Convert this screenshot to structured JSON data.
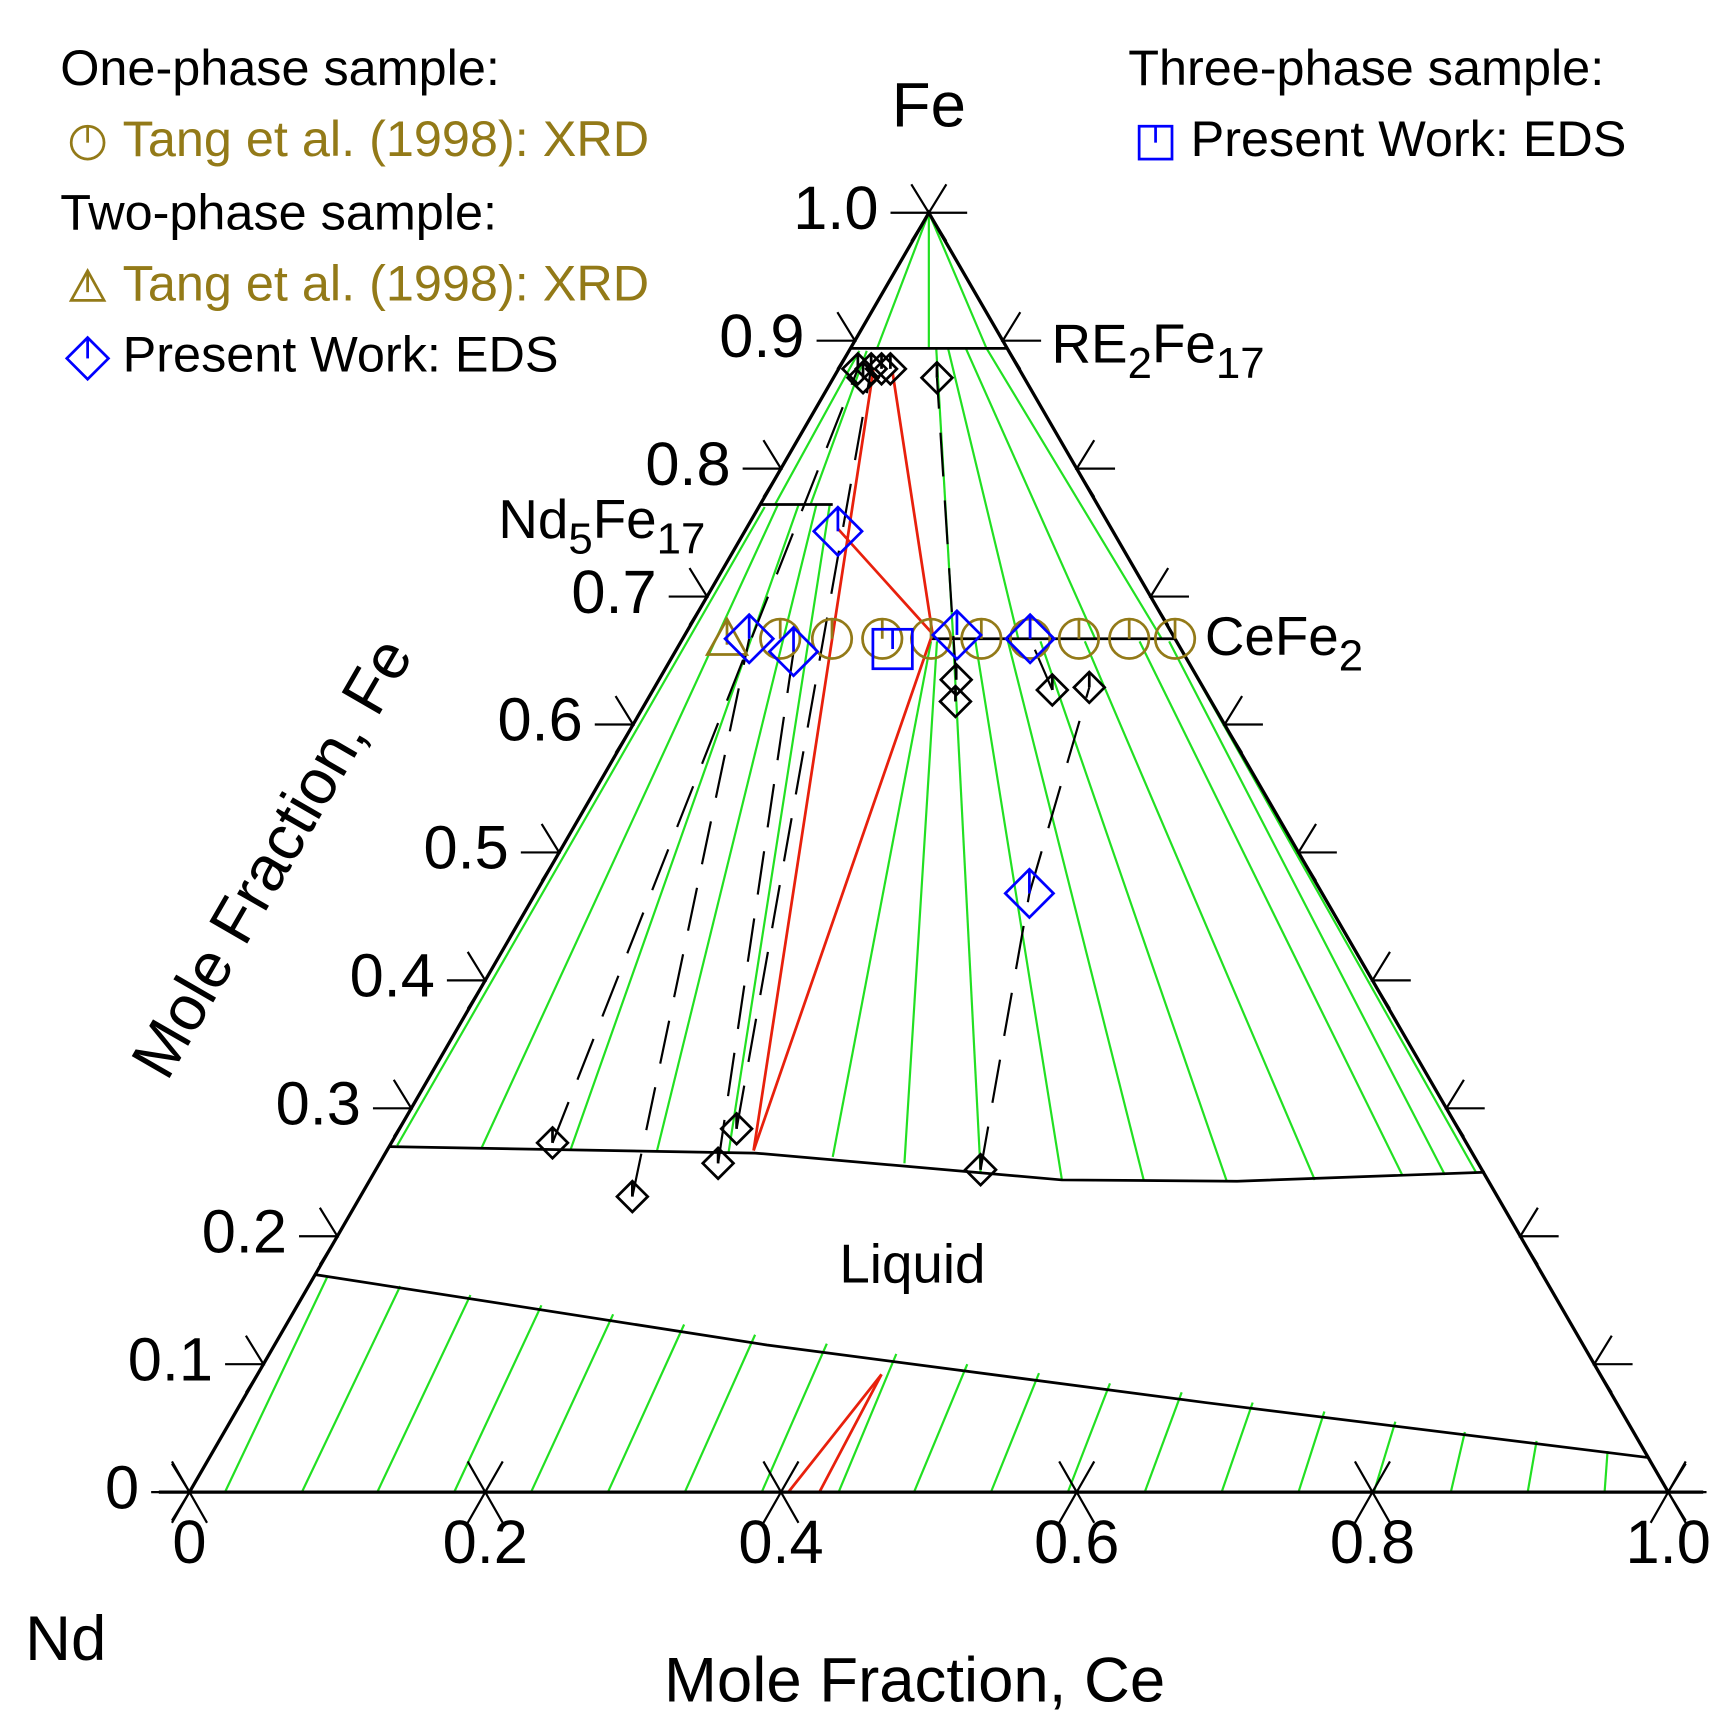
{
  "chart_data": {
    "type": "ternary",
    "corner_labels": {
      "left": "Nd",
      "top": "Fe"
    },
    "xlabel": "Mole Fraction, Ce",
    "ylabel": "Mole Fraction, Fe",
    "fe_ticks": [
      0,
      0.1,
      0.2,
      0.3,
      0.4,
      0.5,
      0.6,
      0.7,
      0.8,
      0.9,
      {
        "value": 1,
        "label": "1.0"
      }
    ],
    "ce_ticks": [
      0,
      0.2,
      0.4,
      0.6,
      0.8,
      {
        "value": 1,
        "label": "1.0"
      }
    ],
    "groups": [
      {
        "title": "One-phase sample:",
        "series": [
          {
            "name": "Tang et al. (1998): XRD",
            "marker": "circle",
            "color": "#937a18",
            "label_color": "#937a18",
            "x": [
              0.066,
              0.101,
              0.135,
              0.168,
              0.202,
              0.235,
              0.268,
              0.302,
              0.333
            ],
            "values": [
              0.667,
              0.667,
              0.667,
              0.667,
              0.667,
              0.667,
              0.667,
              0.667,
              0.667
            ]
          }
        ]
      },
      {
        "title": "Two-phase sample:",
        "series": [
          {
            "name": "Tang et al. (1998): XRD",
            "marker": "triangle",
            "color": "#937a18",
            "label_color": "#937a18",
            "x": [
              0.03
            ],
            "values": [
              0.667
            ]
          },
          {
            "name": "Present Work: EDS",
            "marker": "diamond",
            "color": "#0000ff",
            "label_color": "#000000",
            "x": [
              0.045,
              0.08,
              0.063,
              0.184,
              0.235,
              0.334
            ],
            "values": [
              0.667,
              0.657,
              0.751,
              0.67,
              0.667,
              0.468
            ]
          }
        ]
      },
      {
        "title": "Three-phase sample:",
        "series": [
          {
            "name": "Present Work: EDS",
            "marker": "square",
            "color": "#0000ff",
            "label_color": "#000000",
            "x": [
              0.146
            ],
            "values": [
              0.659
            ]
          }
        ]
      }
    ],
    "tie_points": {
      "color": "#000000",
      "x": [
        0.013,
        0.022,
        0.029,
        0.035,
        0.02,
        0.07,
        0.109,
        0.184,
        0.229,
        0.228,
        0.409,
        0.201,
        0.209,
        0.27,
        0.294
      ],
      "values": [
        0.878,
        0.878,
        0.878,
        0.878,
        0.871,
        0.871,
        0.273,
        0.231,
        0.257,
        0.284,
        0.252,
        0.635,
        0.618,
        0.627,
        0.629
      ]
    },
    "experimental_ties": [
      [
        [
          0.109,
          0.273
        ],
        [
          0.013,
          0.878
        ]
      ],
      [
        [
          0.184,
          0.231
        ],
        [
          0.045,
          0.667
        ]
      ],
      [
        [
          0.229,
          0.257
        ],
        [
          0.08,
          0.657
        ]
      ],
      [
        [
          0.228,
          0.284
        ],
        [
          0.022,
          0.878
        ]
      ],
      [
        [
          0.201,
          0.635
        ],
        [
          0.07,
          0.871
        ]
      ],
      [
        [
          0.27,
          0.627
        ],
        [
          0.235,
          0.667
        ]
      ],
      [
        [
          0.409,
          0.252
        ],
        [
          0.334,
          0.468
        ]
      ],
      [
        [
          0.334,
          0.468
        ],
        [
          0.294,
          0.629
        ]
      ]
    ],
    "boundaries": [
      [
        [
          0,
          0.27
        ],
        [
          0.25,
          0.265
        ],
        [
          0.468,
          0.244
        ],
        [
          0.587,
          0.243
        ],
        [
          0.751,
          0.25
        ]
      ],
      [
        [
          0,
          0.17
        ],
        [
          0.333,
          0.115
        ],
        [
          0.652,
          0.07
        ],
        [
          0.973,
          0.027
        ]
      ],
      [
        [
          0,
          0.894
        ],
        [
          0.106,
          0.894
        ]
      ],
      [
        [
          0,
          0.772
        ],
        [
          0.049,
          0.772
        ]
      ],
      [
        [
          0.168,
          0.667
        ],
        [
          0.333,
          0.667
        ]
      ]
    ],
    "tie_lines": [
      [
        [
          0.005,
          0.271
        ],
        [
          0.004,
          0.77
        ]
      ],
      [
        [
          0.063,
          0.269
        ],
        [
          0.012,
          0.772
        ]
      ],
      [
        [
          0.124,
          0.267
        ],
        [
          0.026,
          0.772
        ]
      ],
      [
        [
          0.183,
          0.266
        ],
        [
          0.038,
          0.772
        ]
      ],
      [
        [
          0.232,
          0.265
        ],
        [
          0.047,
          0.772
        ]
      ],
      [
        [
          0.01,
          0.772
        ],
        [
          0.007,
          0.892
        ]
      ],
      [
        [
          0.034,
          0.772
        ],
        [
          0.012,
          0.892
        ]
      ],
      [
        [
          0.304,
          0.262
        ],
        [
          0.169,
          0.665
        ]
      ],
      [
        [
          0.355,
          0.257
        ],
        [
          0.173,
          0.665
        ]
      ],
      [
        [
          0.41,
          0.25
        ],
        [
          0.184,
          0.665
        ]
      ],
      [
        [
          0.468,
          0.244
        ],
        [
          0.199,
          0.665
        ]
      ],
      [
        [
          0.524,
          0.243
        ],
        [
          0.221,
          0.665
        ]
      ],
      [
        [
          0.58,
          0.243
        ],
        [
          0.243,
          0.665
        ]
      ],
      [
        [
          0.639,
          0.244
        ],
        [
          0.273,
          0.665
        ]
      ],
      [
        [
          0.697,
          0.247
        ],
        [
          0.31,
          0.665
        ]
      ],
      [
        [
          0.725,
          0.248
        ],
        [
          0.33,
          0.665
        ]
      ],
      [
        [
          0.745,
          0.25
        ],
        [
          0.333,
          0.667
        ]
      ],
      [
        [
          0.183,
          0.667
        ],
        [
          0.058,
          0.894
        ]
      ],
      [
        [
          0.227,
          0.667
        ],
        [
          0.066,
          0.894
        ]
      ],
      [
        [
          0.279,
          0.667
        ],
        [
          0.078,
          0.894
        ]
      ],
      [
        [
          0.324,
          0.667
        ],
        [
          0.092,
          0.894
        ]
      ],
      [
        [
          0,
          1
        ],
        [
          0.018,
          0.894
        ]
      ],
      [
        [
          0,
          1
        ],
        [
          0.053,
          0.894
        ]
      ],
      [
        [
          0,
          1
        ],
        [
          0.092,
          0.894
        ]
      ],
      [
        [
          0.009,
          0.169
        ],
        [
          0.024,
          0
        ]
      ],
      [
        [
          0.062,
          0.161
        ],
        [
          0.076,
          0
        ]
      ],
      [
        [
          0.113,
          0.154
        ],
        [
          0.127,
          0
        ]
      ],
      [
        [
          0.165,
          0.146
        ],
        [
          0.179,
          0
        ]
      ],
      [
        [
          0.217,
          0.139
        ],
        [
          0.231,
          0
        ]
      ],
      [
        [
          0.269,
          0.131
        ],
        [
          0.283,
          0
        ]
      ],
      [
        [
          0.321,
          0.123
        ],
        [
          0.335,
          0
        ]
      ],
      [
        [
          0.373,
          0.116
        ],
        [
          0.387,
          0
        ]
      ],
      [
        [
          0.424,
          0.108
        ],
        [
          0.439,
          0
        ]
      ],
      [
        [
          0.476,
          0.1
        ],
        [
          0.49,
          0
        ]
      ],
      [
        [
          0.528,
          0.093
        ],
        [
          0.542,
          0
        ]
      ],
      [
        [
          0.58,
          0.085
        ],
        [
          0.594,
          0
        ]
      ],
      [
        [
          0.632,
          0.078
        ],
        [
          0.646,
          0
        ]
      ],
      [
        [
          0.684,
          0.07
        ],
        [
          0.698,
          0
        ]
      ],
      [
        [
          0.736,
          0.063
        ],
        [
          0.75,
          0
        ]
      ],
      [
        [
          0.788,
          0.055
        ],
        [
          0.801,
          0
        ]
      ],
      [
        [
          0.839,
          0.047
        ],
        [
          0.853,
          0
        ]
      ],
      [
        [
          0.891,
          0.04
        ],
        [
          0.905,
          0
        ]
      ],
      [
        [
          0.943,
          0.032
        ],
        [
          0.957,
          0
        ]
      ]
    ],
    "tie_color": "#22e022",
    "three_phase_lines": [
      [
        [
          0.024,
          0.877
        ],
        [
          0.248,
          0.267
        ]
      ],
      [
        [
          0.038,
          0.875
        ],
        [
          0.167,
          0.671
        ]
      ],
      [
        [
          0.167,
          0.671
        ],
        [
          0.248,
          0.267
        ]
      ],
      [
        [
          0.062,
          0.753
        ],
        [
          0.167,
          0.671
        ]
      ],
      [
        [
          0.422,
          0.092
        ],
        [
          0.405,
          0
        ]
      ],
      [
        [
          0.422,
          0.092
        ],
        [
          0.426,
          0
        ]
      ]
    ],
    "three_phase_color": "#e8200c",
    "annotations": [
      [
        "Liquid"
      ],
      [
        "RE",
        "2",
        "Fe",
        "17"
      ],
      [
        "Nd",
        "5",
        "Fe",
        "17"
      ],
      [
        "CeFe",
        "2"
      ]
    ]
  }
}
